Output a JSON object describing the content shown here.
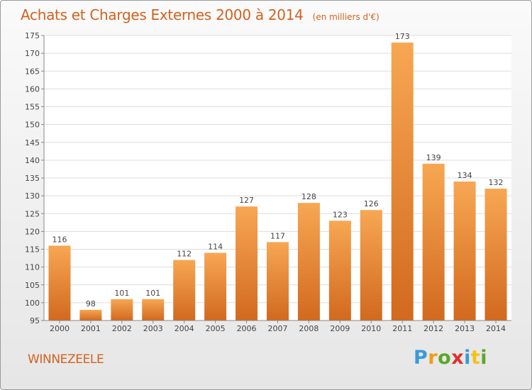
{
  "header": {
    "title": "Achats et Charges Externes 2000 à 2014",
    "subtitle": "(en milliers d'€)"
  },
  "commune": "WINNEZEELE",
  "logo": {
    "text": "Proxiti",
    "colors": [
      "#3a9ad9",
      "#f29b16",
      "#5aa82a",
      "#e0302e",
      "#3a9ad9",
      "#f2c316",
      "#5aa82a"
    ]
  },
  "chart_data": {
    "type": "bar",
    "title": "Achats et Charges Externes 2000 à 2014",
    "subtitle": "(en milliers d'€)",
    "categories": [
      "2000",
      "2001",
      "2002",
      "2003",
      "2004",
      "2005",
      "2006",
      "2007",
      "2008",
      "2009",
      "2010",
      "2011",
      "2012",
      "2013",
      "2014"
    ],
    "values": [
      116,
      98,
      101,
      101,
      112,
      114,
      127,
      117,
      128,
      123,
      126,
      173,
      139,
      134,
      132
    ],
    "ylim": [
      95,
      175
    ],
    "yticks": [
      95,
      100,
      105,
      110,
      115,
      120,
      125,
      130,
      135,
      140,
      145,
      150,
      155,
      160,
      165,
      170,
      175
    ],
    "grid": true,
    "bar_color_top": "#f7a753",
    "bar_color_bottom": "#d2691e",
    "data_labels": true
  }
}
